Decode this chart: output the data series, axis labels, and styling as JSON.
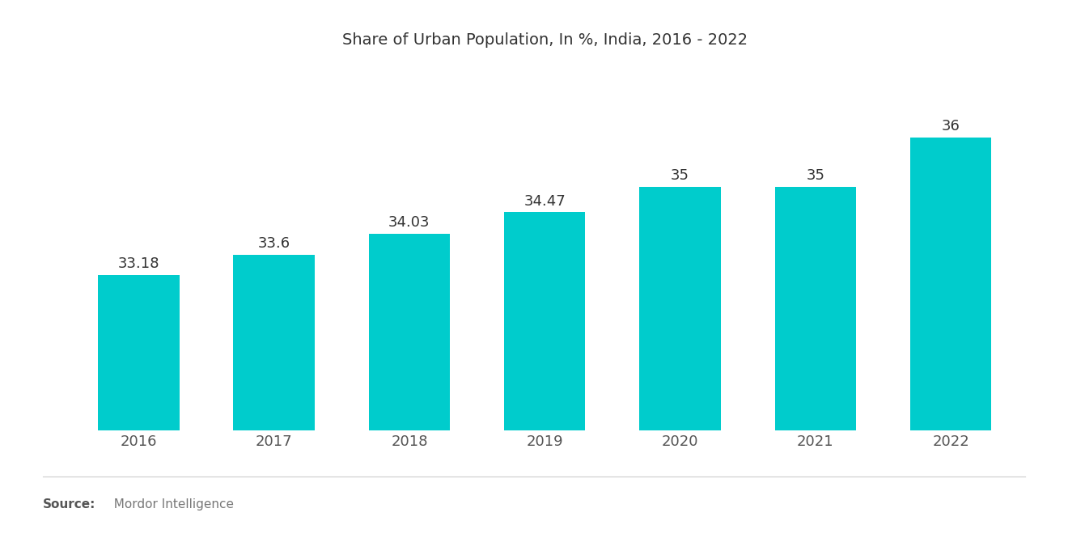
{
  "title": "Share of Urban Population, In %, India, 2016 - 2022",
  "categories": [
    "2016",
    "2017",
    "2018",
    "2019",
    "2020",
    "2021",
    "2022"
  ],
  "values": [
    33.18,
    33.6,
    34.03,
    34.47,
    35,
    35,
    36
  ],
  "bar_color": "#00CCCC",
  "background_color": "#ffffff",
  "title_fontsize": 14,
  "label_fontsize": 13,
  "value_fontsize": 13,
  "source_bold": "Source:",
  "source_normal": "  Mordor Intelligence",
  "ylim": [
    30,
    37.5
  ],
  "bar_width": 0.6
}
